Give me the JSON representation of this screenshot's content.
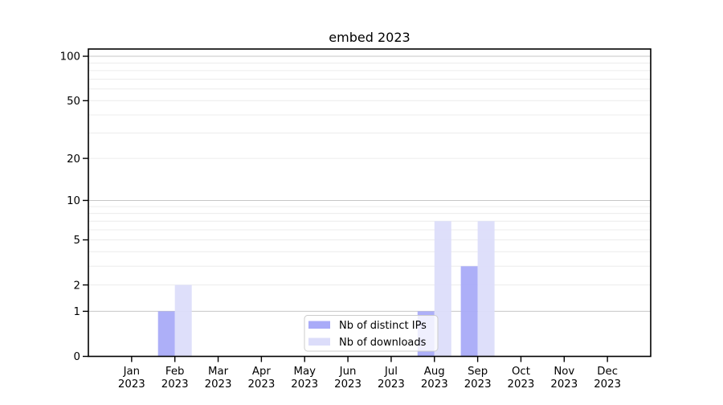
{
  "chart_data": {
    "type": "bar",
    "title": "embed 2023",
    "categories": [
      "Jan 2023",
      "Feb 2023",
      "Mar 2023",
      "Apr 2023",
      "May 2023",
      "Jun 2023",
      "Jul 2023",
      "Aug 2023",
      "Sep 2023",
      "Oct 2023",
      "Nov 2023",
      "Dec 2023"
    ],
    "series": [
      {
        "name": "Nb of distinct IPs",
        "color": "#a9abf8",
        "values": [
          0,
          1,
          0,
          0,
          0,
          0,
          0,
          1,
          3,
          0,
          0,
          0
        ]
      },
      {
        "name": "Nb of downloads",
        "color": "#dcddfa",
        "values": [
          0,
          2,
          0,
          0,
          0,
          0,
          0,
          7,
          7,
          0,
          0,
          0
        ]
      }
    ],
    "y_axis": {
      "scale": "symlog-log1p",
      "ticks": [
        100,
        50,
        20,
        10,
        5,
        2,
        1,
        0
      ],
      "major_gridlines": [
        1,
        10,
        100
      ],
      "minor_gridlines": [
        2,
        3,
        4,
        5,
        6,
        7,
        8,
        9,
        20,
        30,
        40,
        50,
        60,
        70,
        80,
        90
      ],
      "range": [
        0,
        112
      ]
    },
    "legend": {
      "position": "lower center"
    },
    "grid": true,
    "colors": {
      "grid_major": "#c6c6c6",
      "grid_minor": "#ececec",
      "frame": "#000000",
      "text": "#000000",
      "legend_border": "#cccccc"
    }
  }
}
